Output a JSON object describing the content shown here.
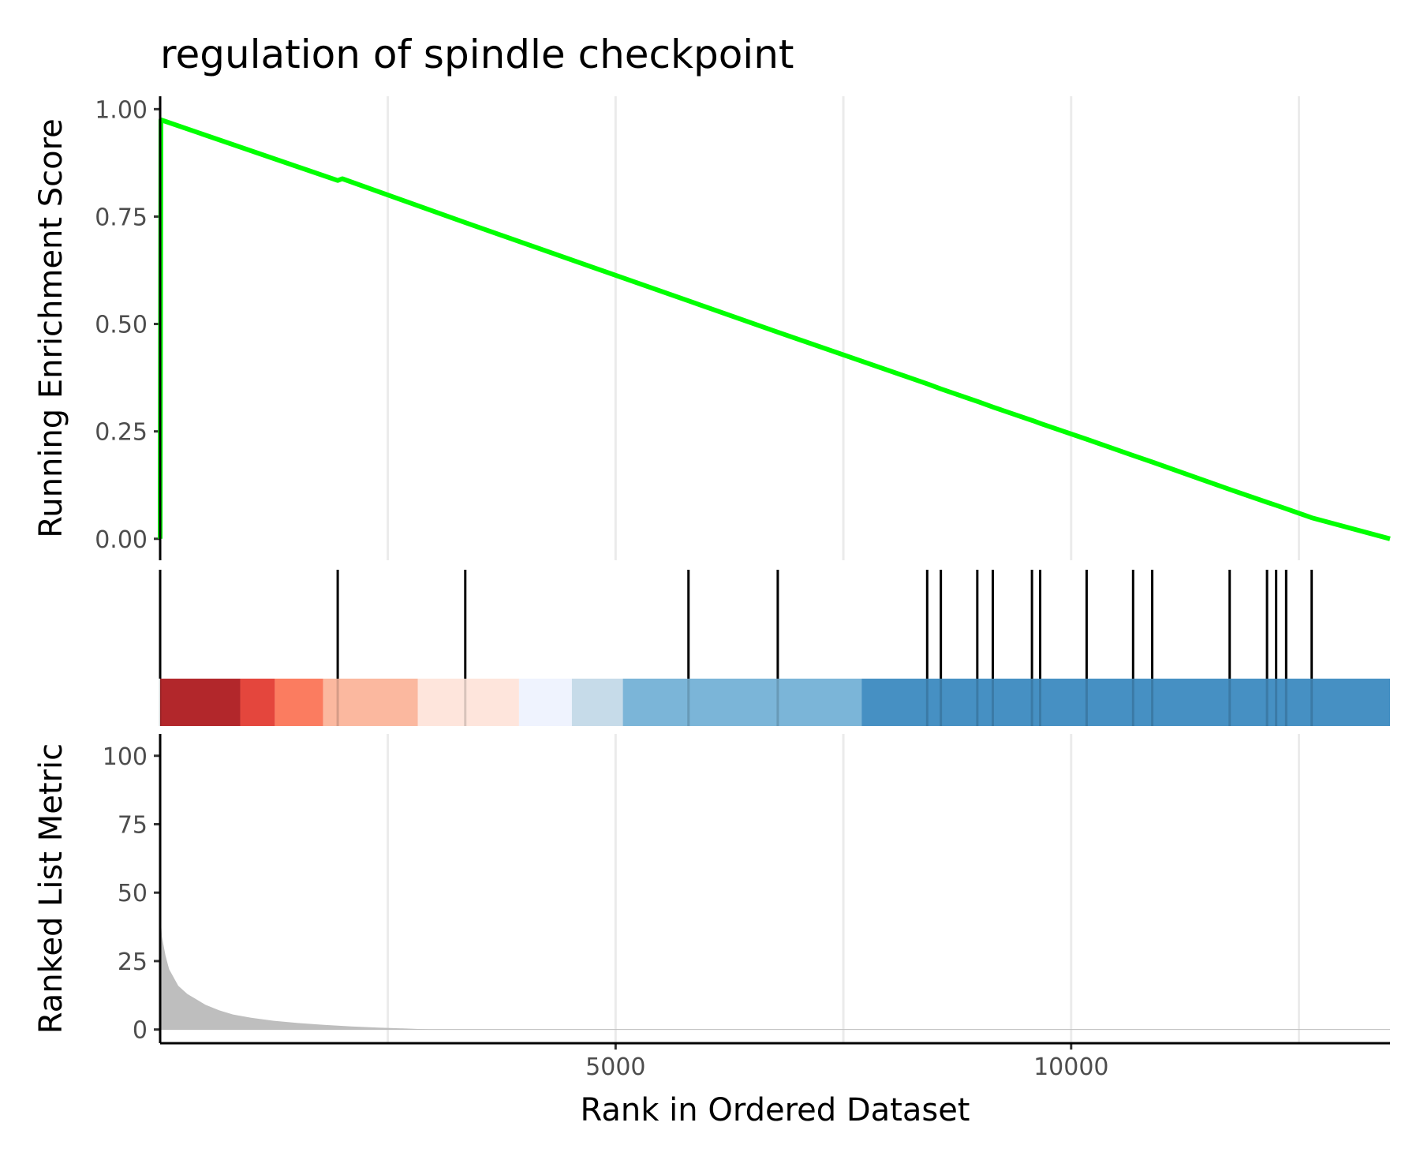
{
  "chart_data": {
    "type": "line",
    "title": "regulation of spindle checkpoint",
    "colors": {
      "running_es": "#00ff00",
      "metric_fill": "#bebebe",
      "hit_lines": "#000000",
      "gradient": [
        "#b2272b",
        "#e4463d",
        "#fb7c60",
        "#fbb89f",
        "#fee5dc",
        "#eff3fe",
        "#c6dbe9",
        "#7bb5d8",
        "#4690c3"
      ]
    },
    "x": {
      "label": "Rank in Ordered Dataset",
      "lim": [
        1,
        13500
      ],
      "ticks": [
        5000,
        10000
      ],
      "gridlines": [
        2500,
        5000,
        7500,
        10000,
        12500
      ]
    },
    "panels": [
      {
        "name": "running-enrichment",
        "ylabel": "Running Enrichment Score",
        "ylim": [
          -0.05,
          1.03
        ],
        "yticks": [
          "0.00",
          "0.25",
          "0.50",
          "0.75",
          "1.00"
        ],
        "series": [
          {
            "x": [
              1,
              10,
              1950,
              2000,
              3350,
              5800,
              6780,
              8430,
              8570,
              8980,
              9150,
              9580,
              9670,
              10180,
              10680,
              10900,
              11740,
              12150,
              12250,
              12360,
              12640,
              13500
            ],
            "y": [
              0.0,
              0.975,
              0.834,
              0.838,
              0.736,
              0.554,
              0.481,
              0.36,
              0.349,
              0.319,
              0.306,
              0.275,
              0.268,
              0.231,
              0.194,
              0.178,
              0.115,
              0.085,
              0.078,
              0.07,
              0.049,
              0.0
            ]
          }
        ]
      },
      {
        "name": "gene-hits",
        "hits": [
          1,
          1950,
          3350,
          5800,
          6780,
          8420,
          8570,
          8970,
          9140,
          9570,
          9660,
          10170,
          10680,
          10890,
          11740,
          12150,
          12250,
          12360,
          12640
        ],
        "gradient_breaks": [
          1,
          880,
          1260,
          1790,
          2830,
          3940,
          4520,
          5080,
          7700,
          13500
        ]
      },
      {
        "name": "ranked-metric",
        "ylabel": "Ranked List Metric",
        "ylim": [
          -5,
          108
        ],
        "yticks": [
          "0",
          "25",
          "50",
          "75",
          "100"
        ],
        "series": [
          {
            "x": [
              1,
              5,
              20,
              60,
              100,
              150,
              200,
              300,
              400,
              500,
              650,
              800,
              1000,
              1250,
              1500,
              1800,
              2100,
              2400,
              2700,
              3000,
              13500
            ],
            "y": [
              53,
              42,
              34,
              27,
              22,
              19,
              16,
              13,
              11,
              9,
              7,
              5.5,
              4.3,
              3.2,
              2.4,
              1.7,
              1.1,
              0.7,
              0.35,
              0,
              0
            ]
          }
        ]
      }
    ]
  }
}
